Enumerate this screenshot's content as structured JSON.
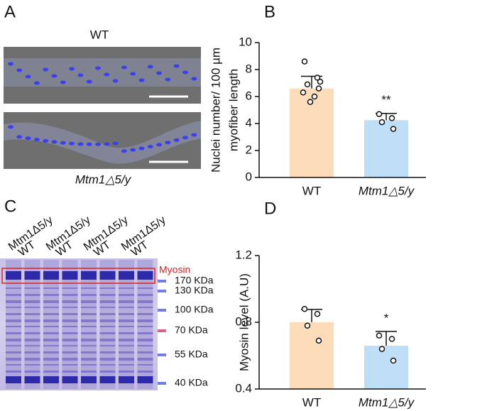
{
  "panels": {
    "a": "A",
    "b": "B",
    "c": "C",
    "d": "D"
  },
  "micrograph": {
    "top_label": "WT",
    "bottom_label": "Mtm1△5/y"
  },
  "gel": {
    "lane_labels": [
      "Mtm1Δ5/y",
      "WT",
      "Mtm1Δ5/y",
      "WT",
      "Mtm1Δ5/y",
      "WT",
      "Mtm1Δ5/y",
      "WT"
    ],
    "highlight": "Myosin",
    "markers": [
      "170 KDa",
      "130 KDa",
      "100 KDa",
      "70 KDa",
      "55 KDa",
      "40 KDa"
    ]
  },
  "chart_data": [
    {
      "type": "bar",
      "ylabel": [
        "Nuclei number/ 100 µm",
        "myofiber length"
      ],
      "categories": [
        "WT",
        "Mtm1△5/y"
      ],
      "values": [
        6.6,
        4.25
      ],
      "errors": [
        0.9,
        0.5
      ],
      "points": [
        [
          8.6,
          7.4,
          6.9,
          6.6,
          6.3,
          6.0,
          5.6,
          7.1
        ],
        [
          4.7,
          4.4,
          4.1,
          3.6
        ]
      ],
      "significance": [
        null,
        "**"
      ],
      "colors": [
        "#fddcb9",
        "#bfdff7"
      ],
      "ylim": [
        0,
        10
      ],
      "yticks": [
        0,
        2,
        4,
        6,
        8,
        10
      ]
    },
    {
      "type": "bar",
      "ylabel": [
        "Myosin level (A.U)"
      ],
      "categories": [
        "WT",
        "Mtm1△5/y"
      ],
      "values": [
        0.8,
        0.66
      ],
      "errors": [
        0.077,
        0.085
      ],
      "points": [
        [
          0.88,
          0.85,
          0.78,
          0.69
        ],
        [
          0.72,
          0.7,
          0.64,
          0.57
        ]
      ],
      "significance": [
        null,
        "*"
      ],
      "colors": [
        "#fddcb9",
        "#bfdff7"
      ],
      "ylim": [
        0.4,
        1.2
      ],
      "yticks": [
        0.4,
        0.8,
        1.2
      ]
    }
  ]
}
